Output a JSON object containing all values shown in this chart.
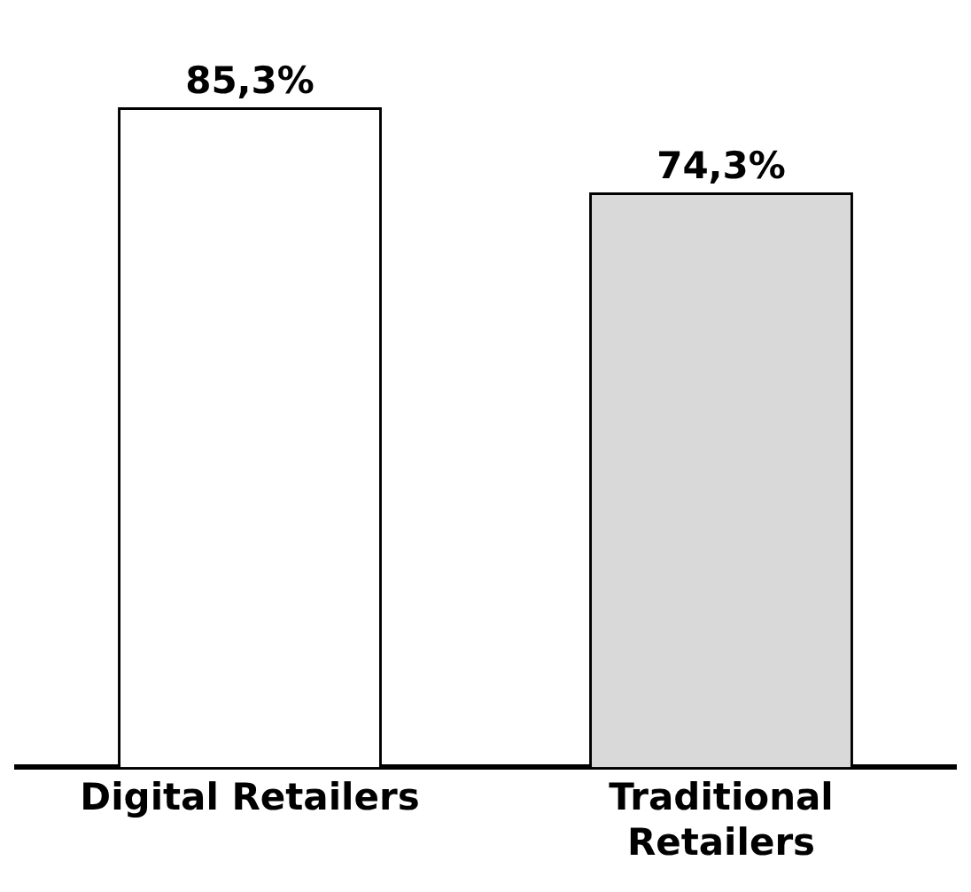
{
  "chart_data": {
    "type": "bar",
    "categories": [
      "Digital Retailers",
      "Traditional Retailers"
    ],
    "values": [
      85.3,
      74.3
    ],
    "value_labels": [
      "85,3%",
      "74,3%"
    ],
    "colors": [
      "#ffffff",
      "#d9d9d9"
    ],
    "grid": false,
    "legend": false
  }
}
